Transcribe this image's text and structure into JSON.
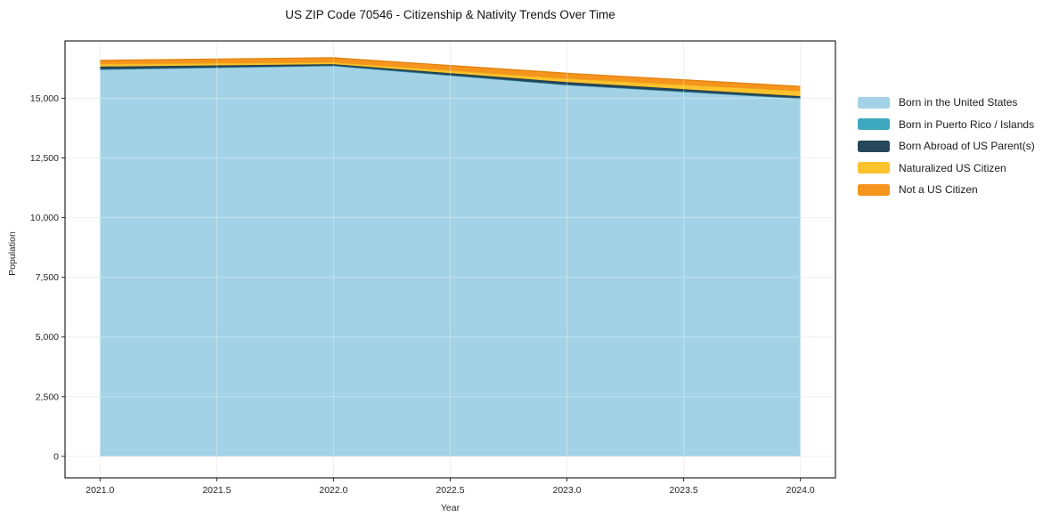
{
  "title": "US ZIP Code 70546 - Citizenship & Nativity Trends Over Time",
  "chart_data": {
    "type": "area",
    "stacked": true,
    "title": "US ZIP Code 70546 - Citizenship & Nativity Trends Over Time",
    "xlabel": "Year",
    "ylabel": "Population",
    "x": [
      2021,
      2022,
      2023,
      2024
    ],
    "series": [
      {
        "id": "born-us",
        "name": "Born in the United States",
        "color": "#a3d2e7",
        "edge": "#8ec5dc",
        "values": [
          16200,
          16350,
          15550,
          14980
        ]
      },
      {
        "id": "born-pr-islands",
        "name": "Born in Puerto Rico / Islands",
        "color": "#3da8c0",
        "edge": "#35899e",
        "values": [
          15,
          15,
          15,
          15
        ]
      },
      {
        "id": "born-abroad",
        "name": "Born Abroad of US Parent(s)",
        "color": "#26465a",
        "edge": "#1d3947",
        "values": [
          110,
          60,
          110,
          90
        ]
      },
      {
        "id": "naturalized",
        "name": "Naturalized US Citizen",
        "color": "#fcc22e",
        "edge": "#eab117",
        "values": [
          110,
          80,
          150,
          220
        ]
      },
      {
        "id": "not-citizen",
        "name": "Not a US Citizen",
        "color": "#f6941e",
        "edge": "#e0820e",
        "values": [
          150,
          190,
          220,
          190
        ]
      }
    ],
    "xlim": [
      2020.85,
      2024.15
    ],
    "ylim": [
      -900,
      17400
    ],
    "x_ticks": [
      2021.0,
      2021.5,
      2022.0,
      2022.5,
      2023.0,
      2023.5,
      2024.0
    ],
    "x_tick_labels": [
      "2021.0",
      "2021.5",
      "2022.0",
      "2022.5",
      "2023.0",
      "2023.5",
      "2024.0"
    ],
    "y_ticks": [
      0,
      2500,
      5000,
      7500,
      10000,
      12500,
      15000
    ],
    "y_tick_labels": [
      "0",
      "2,500",
      "5,000",
      "7,500",
      "10,000",
      "12,500",
      "15,000"
    ],
    "grid": true,
    "legend_position": "right",
    "colors": {
      "grid_under": "#e9e9e9",
      "grid_over": "rgba(255,255,255,0.35)",
      "frame": "#262626",
      "tick_text": "#262626",
      "background": "#ffffff"
    }
  }
}
